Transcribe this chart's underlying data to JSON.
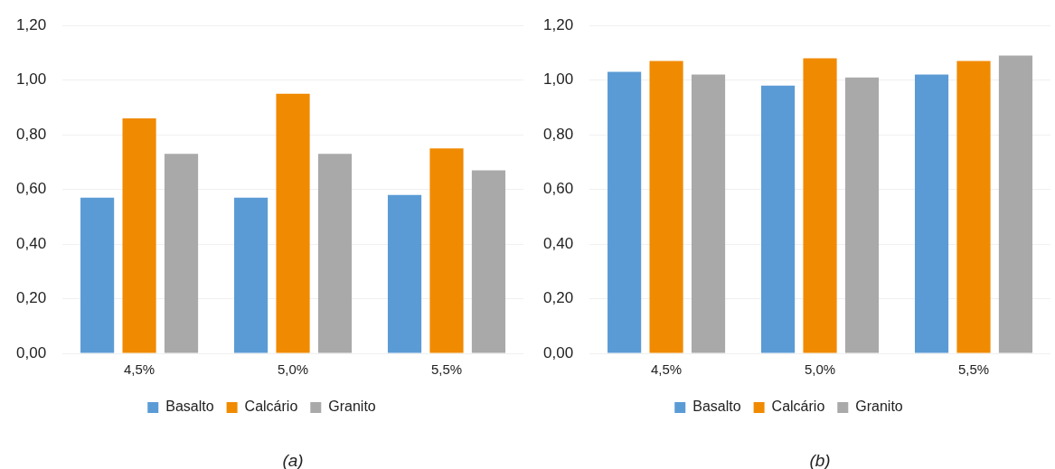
{
  "chart_data": [
    {
      "type": "bar",
      "categories": [
        "4,5%",
        "5,0%",
        "5,5%"
      ],
      "series": [
        {
          "name": "Basalto",
          "color": "#5b9bd5",
          "values": [
            0.57,
            0.57,
            0.58
          ]
        },
        {
          "name": "Calcário",
          "color": "#f08a00",
          "values": [
            0.86,
            0.95,
            0.75
          ]
        },
        {
          "name": "Granito",
          "color": "#a9a9a9",
          "values": [
            0.73,
            0.73,
            0.67
          ]
        }
      ],
      "ylim": [
        0,
        1.2
      ],
      "yticks": [
        {
          "value": 0,
          "label": "0,00"
        },
        {
          "value": 0.2,
          "label": "0,20"
        },
        {
          "value": 0.4,
          "label": "0,40"
        },
        {
          "value": 0.6,
          "label": "0,60"
        },
        {
          "value": 0.8,
          "label": "0,80"
        },
        {
          "value": 1,
          "label": "1,00"
        },
        {
          "value": 1.2,
          "label": "1,20"
        }
      ],
      "grid": "y",
      "legend": "bottom",
      "annotations": [
        "(a)"
      ]
    },
    {
      "type": "bar",
      "categories": [
        "4,5%",
        "5,0%",
        "5,5%"
      ],
      "series": [
        {
          "name": "Basalto",
          "color": "#5b9bd5",
          "values": [
            1.03,
            0.98,
            1.02
          ]
        },
        {
          "name": "Calcário",
          "color": "#f08a00",
          "values": [
            1.07,
            1.08,
            1.07
          ]
        },
        {
          "name": "Granito",
          "color": "#a9a9a9",
          "values": [
            1.02,
            1.01,
            1.09
          ]
        }
      ],
      "ylim": [
        0,
        1.2
      ],
      "yticks": [
        {
          "value": 0,
          "label": "0,00"
        },
        {
          "value": 0.2,
          "label": "0,20"
        },
        {
          "value": 0.4,
          "label": "0,40"
        },
        {
          "value": 0.6,
          "label": "0,60"
        },
        {
          "value": 0.8,
          "label": "0,80"
        },
        {
          "value": 1,
          "label": "1,00"
        },
        {
          "value": 1.2,
          "label": "1,20"
        }
      ],
      "grid": "y",
      "legend": "bottom",
      "annotations": [
        "(b)"
      ]
    }
  ]
}
